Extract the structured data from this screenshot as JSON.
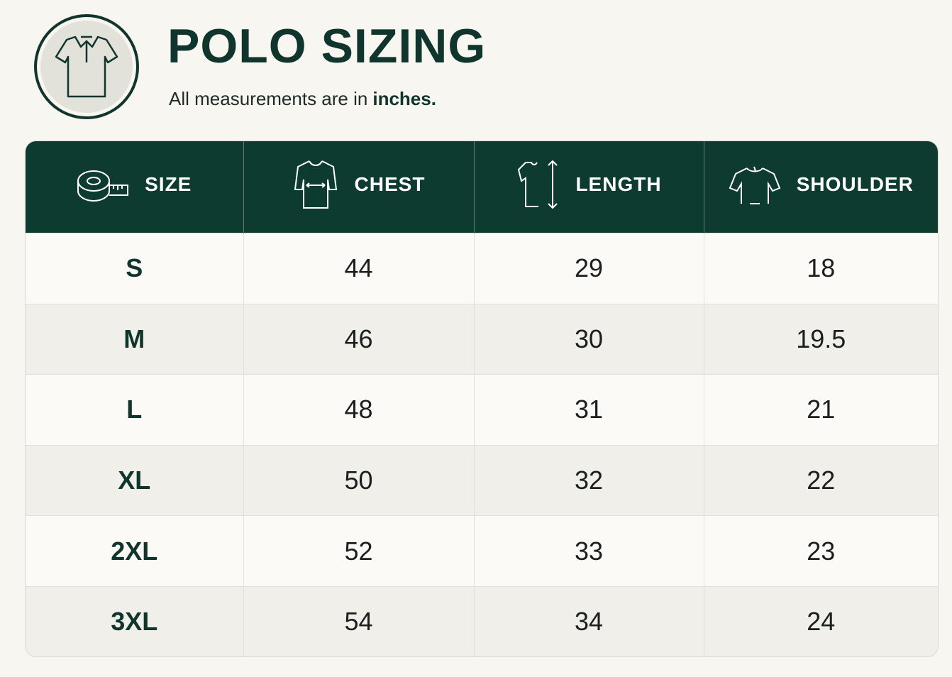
{
  "header": {
    "title": "POLO SIZING",
    "subtitle": "All measurements are in",
    "subtitle_emphasis": "inches."
  },
  "table": {
    "columns": [
      "SIZE",
      "CHEST",
      "LENGTH",
      "SHOULDER"
    ],
    "rows": [
      [
        "S",
        44,
        29,
        18
      ],
      [
        "M",
        46,
        30,
        19.5
      ],
      [
        "L",
        48,
        31,
        21
      ],
      [
        "XL",
        50,
        32,
        22
      ],
      [
        "2XL",
        52,
        33,
        23
      ],
      [
        "3XL",
        54,
        34,
        24
      ]
    ]
  }
}
